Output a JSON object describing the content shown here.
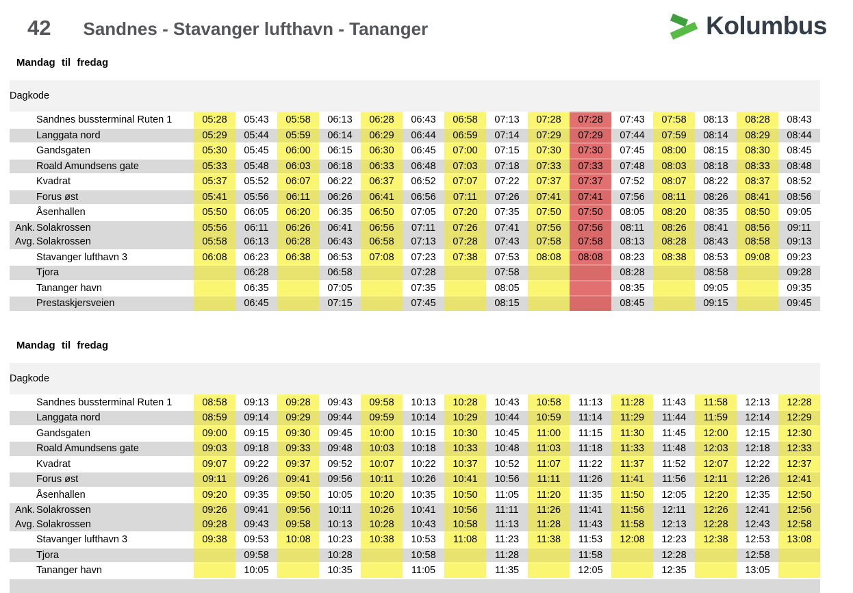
{
  "header": {
    "route_number": "42",
    "route_title": "Sandnes - Stavanger lufthavn - Tananger",
    "brand": "Kolumbus"
  },
  "labels": {
    "arrival_prefix": "Ank.",
    "departure_prefix": "Avg."
  },
  "colors": {
    "highlight_yellow": "#faf672",
    "highlight_yellow_on_gray": "#e8e26e",
    "highlight_red": "#e37070",
    "highlight_red_on_gray": "#d96a6a",
    "row_gray": "#d9d9d9",
    "band_gray": "#f2f2f2",
    "heading_gray": "#55565a",
    "brand_green_dark": "#3f9f3c",
    "brand_green_light": "#58bb45",
    "brand_navy": "#333e48"
  },
  "sections": [
    {
      "day_label": "Mandag til fredag",
      "dagkode_label": "Dagkode",
      "yellow_columns": [
        0,
        2,
        4,
        6,
        8,
        11,
        13
      ],
      "red_columns": [
        9
      ],
      "rows": [
        {
          "lines": [
            {
              "prefix": "",
              "stop": "Sandnes bussterminal Ruten 1",
              "times": [
                "05:28",
                "05:43",
                "05:58",
                "06:13",
                "06:28",
                "06:43",
                "06:58",
                "07:13",
                "07:28",
                "07:28",
                "07:43",
                "07:58",
                "08:13",
                "08:28",
                "08:43"
              ]
            }
          ]
        },
        {
          "lines": [
            {
              "prefix": "",
              "stop": "Langgata nord",
              "times": [
                "05:29",
                "05:44",
                "05:59",
                "06:14",
                "06:29",
                "06:44",
                "06:59",
                "07:14",
                "07:29",
                "07:29",
                "07:44",
                "07:59",
                "08:14",
                "08:29",
                "08:44"
              ]
            }
          ]
        },
        {
          "lines": [
            {
              "prefix": "",
              "stop": "Gandsgaten",
              "times": [
                "05:30",
                "05:45",
                "06:00",
                "06:15",
                "06:30",
                "06:45",
                "07:00",
                "07:15",
                "07:30",
                "07:30",
                "07:45",
                "08:00",
                "08:15",
                "08:30",
                "08:45"
              ]
            }
          ]
        },
        {
          "lines": [
            {
              "prefix": "",
              "stop": "Roald Amundsens gate",
              "times": [
                "05:33",
                "05:48",
                "06:03",
                "06:18",
                "06:33",
                "06:48",
                "07:03",
                "07:18",
                "07:33",
                "07:33",
                "07:48",
                "08:03",
                "08:18",
                "08:33",
                "08:48"
              ]
            }
          ]
        },
        {
          "lines": [
            {
              "prefix": "",
              "stop": "Kvadrat",
              "times": [
                "05:37",
                "05:52",
                "06:07",
                "06:22",
                "06:37",
                "06:52",
                "07:07",
                "07:22",
                "07:37",
                "07:37",
                "07:52",
                "08:07",
                "08:22",
                "08:37",
                "08:52"
              ]
            }
          ]
        },
        {
          "lines": [
            {
              "prefix": "",
              "stop": "Forus øst",
              "times": [
                "05:41",
                "05:56",
                "06:11",
                "06:26",
                "06:41",
                "06:56",
                "07:11",
                "07:26",
                "07:41",
                "07:41",
                "07:56",
                "08:11",
                "08:26",
                "08:41",
                "08:56"
              ]
            }
          ]
        },
        {
          "lines": [
            {
              "prefix": "",
              "stop": "Åsenhallen",
              "times": [
                "05:50",
                "06:05",
                "06:20",
                "06:35",
                "06:50",
                "07:05",
                "07:20",
                "07:35",
                "07:50",
                "07:50",
                "08:05",
                "08:20",
                "08:35",
                "08:50",
                "09:05"
              ]
            }
          ]
        },
        {
          "lines": [
            {
              "prefix": "Ank.",
              "stop": "Solakrossen",
              "times": [
                "05:56",
                "06:11",
                "06:26",
                "06:41",
                "06:56",
                "07:11",
                "07:26",
                "07:41",
                "07:56",
                "07:56",
                "08:11",
                "08:26",
                "08:41",
                "08:56",
                "09:11"
              ]
            },
            {
              "prefix": "Avg.",
              "stop": "Solakrossen",
              "times": [
                "05:58",
                "06:13",
                "06:28",
                "06:43",
                "06:58",
                "07:13",
                "07:28",
                "07:43",
                "07:58",
                "07:58",
                "08:13",
                "08:28",
                "08:43",
                "08:58",
                "09:13"
              ]
            }
          ]
        },
        {
          "lines": [
            {
              "prefix": "",
              "stop": "Stavanger lufthavn 3",
              "times": [
                "06:08",
                "06:23",
                "06:38",
                "06:53",
                "07:08",
                "07:23",
                "07:38",
                "07:53",
                "08:08",
                "08:08",
                "08:23",
                "08:38",
                "08:53",
                "09:08",
                "09:23"
              ]
            }
          ]
        },
        {
          "lines": [
            {
              "prefix": "",
              "stop": "Tjora",
              "times": [
                "",
                "06:28",
                "",
                "06:58",
                "",
                "07:28",
                "",
                "07:58",
                "",
                "",
                "08:28",
                "",
                "08:58",
                "",
                "09:28"
              ]
            }
          ]
        },
        {
          "lines": [
            {
              "prefix": "",
              "stop": "Tananger havn",
              "times": [
                "",
                "06:35",
                "",
                "07:05",
                "",
                "07:35",
                "",
                "08:05",
                "",
                "",
                "08:35",
                "",
                "09:05",
                "",
                "09:35"
              ]
            }
          ]
        },
        {
          "lines": [
            {
              "prefix": "",
              "stop": "Prestaskjersveien",
              "times": [
                "",
                "06:45",
                "",
                "07:15",
                "",
                "07:45",
                "",
                "08:15",
                "",
                "",
                "08:45",
                "",
                "09:15",
                "",
                "09:45"
              ]
            }
          ]
        }
      ]
    },
    {
      "day_label": "Mandag til fredag",
      "dagkode_label": "Dagkode",
      "yellow_columns": [
        0,
        2,
        4,
        6,
        8,
        10,
        12,
        14
      ],
      "red_columns": [],
      "rows": [
        {
          "lines": [
            {
              "prefix": "",
              "stop": "Sandnes bussterminal Ruten 1",
              "times": [
                "08:58",
                "09:13",
                "09:28",
                "09:43",
                "09:58",
                "10:13",
                "10:28",
                "10:43",
                "10:58",
                "11:13",
                "11:28",
                "11:43",
                "11:58",
                "12:13",
                "12:28"
              ]
            }
          ]
        },
        {
          "lines": [
            {
              "prefix": "",
              "stop": "Langgata nord",
              "times": [
                "08:59",
                "09:14",
                "09:29",
                "09:44",
                "09:59",
                "10:14",
                "10:29",
                "10:44",
                "10:59",
                "11:14",
                "11:29",
                "11:44",
                "11:59",
                "12:14",
                "12:29"
              ]
            }
          ]
        },
        {
          "lines": [
            {
              "prefix": "",
              "stop": "Gandsgaten",
              "times": [
                "09:00",
                "09:15",
                "09:30",
                "09:45",
                "10:00",
                "10:15",
                "10:30",
                "10:45",
                "11:00",
                "11:15",
                "11:30",
                "11:45",
                "12:00",
                "12:15",
                "12:30"
              ]
            }
          ]
        },
        {
          "lines": [
            {
              "prefix": "",
              "stop": "Roald Amundsens gate",
              "times": [
                "09:03",
                "09:18",
                "09:33",
                "09:48",
                "10:03",
                "10:18",
                "10:33",
                "10:48",
                "11:03",
                "11:18",
                "11:33",
                "11:48",
                "12:03",
                "12:18",
                "12:33"
              ]
            }
          ]
        },
        {
          "lines": [
            {
              "prefix": "",
              "stop": "Kvadrat",
              "times": [
                "09:07",
                "09:22",
                "09:37",
                "09:52",
                "10:07",
                "10:22",
                "10:37",
                "10:52",
                "11:07",
                "11:22",
                "11:37",
                "11:52",
                "12:07",
                "12:22",
                "12:37"
              ]
            }
          ]
        },
        {
          "lines": [
            {
              "prefix": "",
              "stop": "Forus øst",
              "times": [
                "09:11",
                "09:26",
                "09:41",
                "09:56",
                "10:11",
                "10:26",
                "10:41",
                "10:56",
                "11:11",
                "11:26",
                "11:41",
                "11:56",
                "12:11",
                "12:26",
                "12:41"
              ]
            }
          ]
        },
        {
          "lines": [
            {
              "prefix": "",
              "stop": "Åsenhallen",
              "times": [
                "09:20",
                "09:35",
                "09:50",
                "10:05",
                "10:20",
                "10:35",
                "10:50",
                "11:05",
                "11:20",
                "11:35",
                "11:50",
                "12:05",
                "12:20",
                "12:35",
                "12:50"
              ]
            }
          ]
        },
        {
          "lines": [
            {
              "prefix": "Ank.",
              "stop": "Solakrossen",
              "times": [
                "09:26",
                "09:41",
                "09:56",
                "10:11",
                "10:26",
                "10:41",
                "10:56",
                "11:11",
                "11:26",
                "11:41",
                "11:56",
                "12:11",
                "12:26",
                "12:41",
                "12:56"
              ]
            },
            {
              "prefix": "Avg.",
              "stop": "Solakrossen",
              "times": [
                "09:28",
                "09:43",
                "09:58",
                "10:13",
                "10:28",
                "10:43",
                "10:58",
                "11:13",
                "11:28",
                "11:43",
                "11:58",
                "12:13",
                "12:28",
                "12:43",
                "12:58"
              ]
            }
          ]
        },
        {
          "lines": [
            {
              "prefix": "",
              "stop": "Stavanger lufthavn 3",
              "times": [
                "09:38",
                "09:53",
                "10:08",
                "10:23",
                "10:38",
                "10:53",
                "11:08",
                "11:23",
                "11:38",
                "11:53",
                "12:08",
                "12:23",
                "12:38",
                "12:53",
                "13:08"
              ]
            }
          ]
        },
        {
          "lines": [
            {
              "prefix": "",
              "stop": "Tjora",
              "times": [
                "",
                "09:58",
                "",
                "10:28",
                "",
                "10:58",
                "",
                "11:28",
                "",
                "11:58",
                "",
                "12:28",
                "",
                "12:58",
                ""
              ]
            }
          ]
        },
        {
          "lines": [
            {
              "prefix": "",
              "stop": "Tananger havn",
              "times": [
                "",
                "10:05",
                "",
                "10:35",
                "",
                "11:05",
                "",
                "11:35",
                "",
                "12:05",
                "",
                "12:35",
                "",
                "13:05",
                ""
              ]
            }
          ]
        },
        {
          "cut_off": true,
          "lines": []
        }
      ]
    }
  ]
}
